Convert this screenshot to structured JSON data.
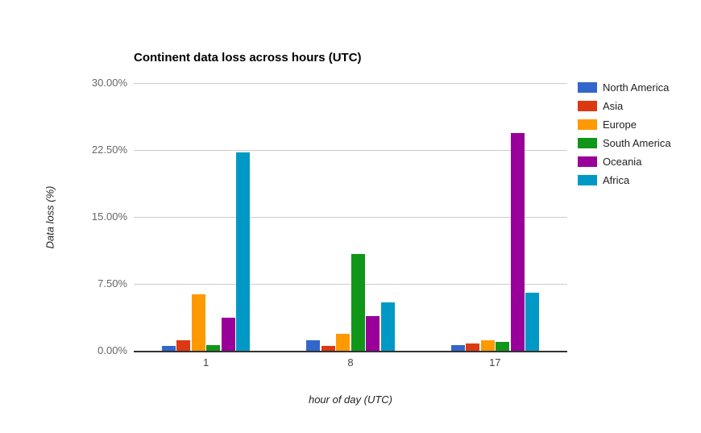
{
  "chart_data": {
    "type": "bar",
    "title": "Continent data loss across hours (UTC)",
    "xlabel": "hour of day (UTC)",
    "ylabel": "Data loss (%)",
    "categories": [
      "1",
      "8",
      "17"
    ],
    "series": [
      {
        "name": "North America",
        "color": "#3366cc",
        "values": [
          0.5,
          1.2,
          0.6
        ]
      },
      {
        "name": "Asia",
        "color": "#dc3912",
        "values": [
          1.2,
          0.5,
          0.8
        ]
      },
      {
        "name": "Europe",
        "color": "#ff9900",
        "values": [
          6.3,
          1.9,
          1.2
        ]
      },
      {
        "name": "South America",
        "color": "#109618",
        "values": [
          0.6,
          10.8,
          1.0
        ]
      },
      {
        "name": "Oceania",
        "color": "#990099",
        "values": [
          3.7,
          3.9,
          24.4
        ]
      },
      {
        "name": "Africa",
        "color": "#0099c6",
        "values": [
          22.2,
          5.4,
          6.5
        ]
      }
    ],
    "ylim": [
      0,
      30
    ],
    "yticks": [
      {
        "value": 0,
        "label": "0.00%"
      },
      {
        "value": 7.5,
        "label": "7.50%"
      },
      {
        "value": 15,
        "label": "15.00%"
      },
      {
        "value": 22.5,
        "label": "22.50%"
      },
      {
        "value": 30,
        "label": "30.00%"
      }
    ],
    "grid": true,
    "legend_position": "right"
  },
  "colors": {
    "background": "#ffffff",
    "gridline": "#cccccc",
    "axis_line": "#333333",
    "y_tick_label": "#666666",
    "x_tick_label": "#444444",
    "axis_title": "#222222",
    "title": "#000000",
    "legend_label": "#222222"
  }
}
